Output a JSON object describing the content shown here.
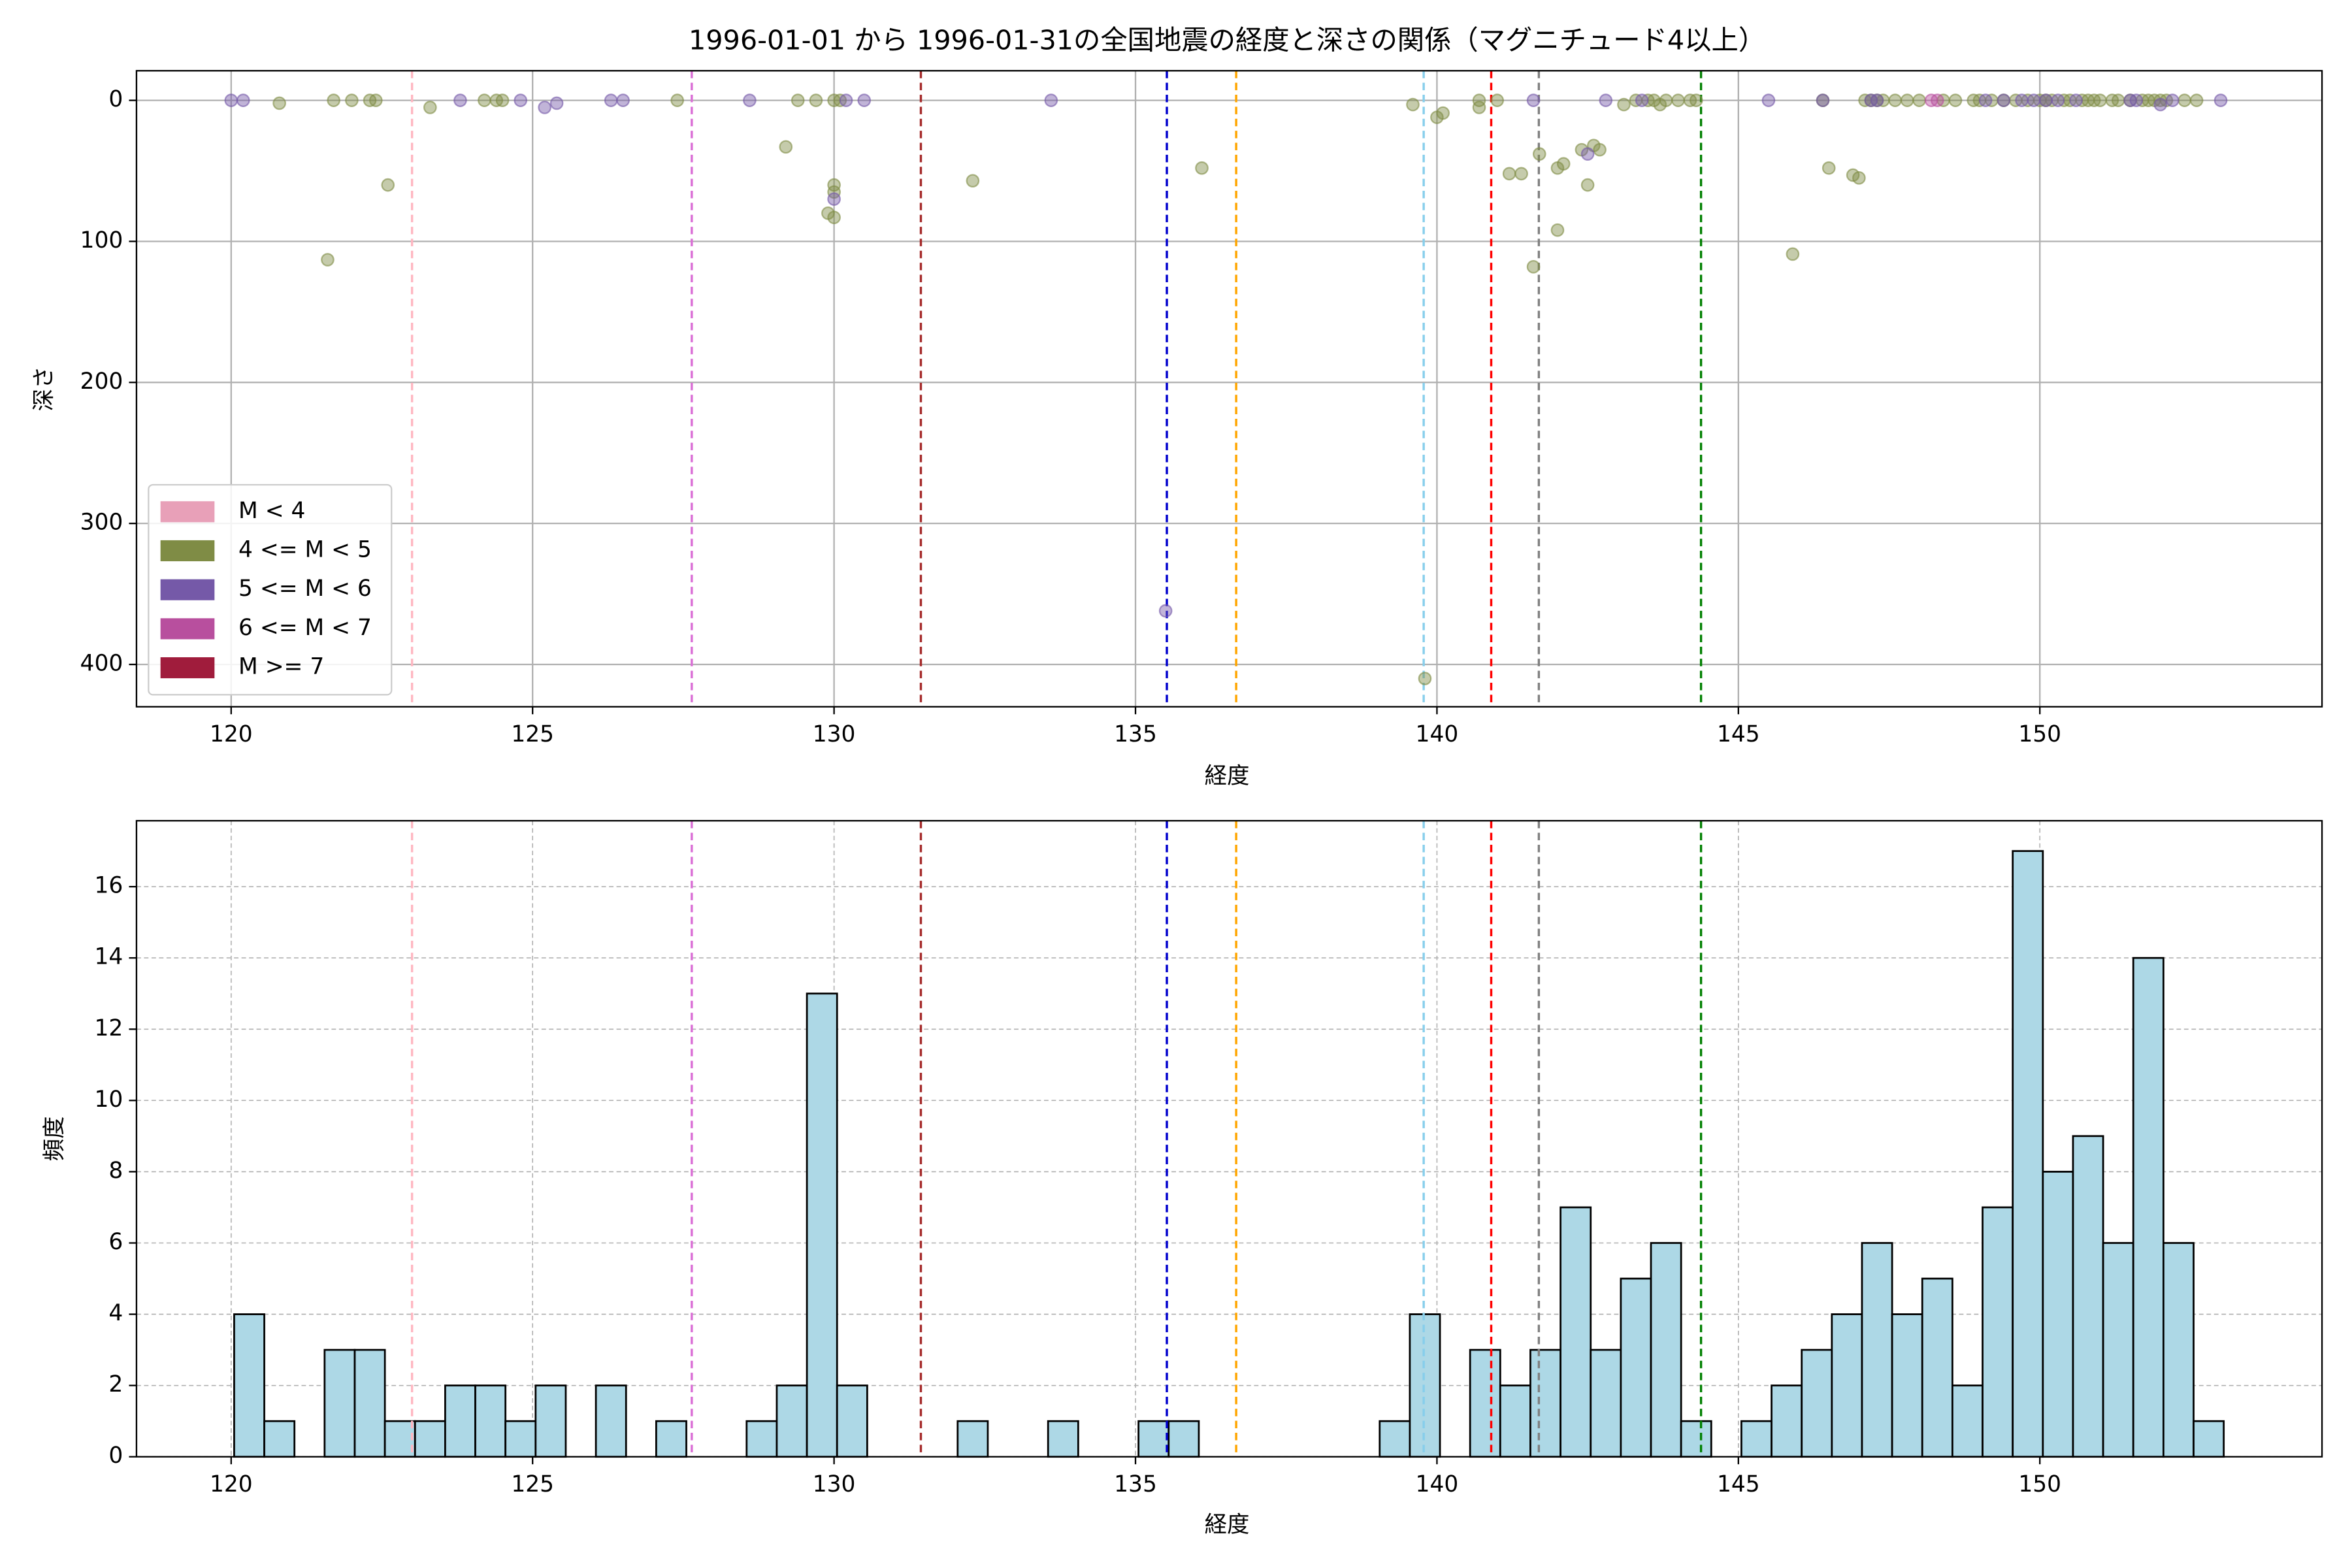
{
  "chart_data": [
    {
      "type": "scatter",
      "title": "1996-01-01 から 1996-01-31の全国地震の経度と深さの関係（マグニチュード4以上）",
      "xlabel": "経度",
      "ylabel": "深さ",
      "xlim": [
        118.43,
        154.68
      ],
      "ylim": [
        430,
        -21
      ],
      "xticks": [
        120,
        125,
        130,
        135,
        140,
        145,
        150
      ],
      "yticks": [
        0,
        100,
        200,
        300,
        400
      ],
      "grid": true,
      "grid_style": "solid",
      "legend": "lower left",
      "vlines": [
        {
          "x": 123.0,
          "color": "#ffb6c1"
        },
        {
          "x": 127.64,
          "color": "#da70d6"
        },
        {
          "x": 131.44,
          "color": "#a52a2a"
        },
        {
          "x": 135.52,
          "color": "#0000cd"
        },
        {
          "x": 136.67,
          "color": "#ffa500"
        },
        {
          "x": 139.78,
          "color": "#87ceeb"
        },
        {
          "x": 140.9,
          "color": "#ff0000"
        },
        {
          "x": 141.69,
          "color": "#808080"
        },
        {
          "x": 144.38,
          "color": "#008000"
        }
      ],
      "series": [
        {
          "name": "M < 4",
          "color": "#e8a0b8",
          "x": [],
          "y": []
        },
        {
          "name": "4 <= M < 5",
          "color": "#7f8c45",
          "x": [
            120.8,
            121.6,
            121.7,
            122.0,
            122.3,
            122.4,
            122.6,
            123.3,
            124.2,
            124.4,
            124.5,
            127.4,
            129.2,
            129.4,
            129.7,
            129.9,
            130.0,
            130.0,
            130.0,
            130.0,
            130.1,
            132.3,
            136.1,
            139.6,
            139.8,
            140.0,
            140.1,
            140.7,
            140.7,
            141.0,
            141.2,
            141.4,
            141.7,
            141.6,
            142.0,
            142.1,
            142.0,
            142.4,
            142.5,
            142.6,
            142.7,
            143.1,
            143.3,
            143.5,
            143.6,
            143.7,
            143.8,
            144.0,
            144.2,
            144.3,
            146.4,
            146.5,
            146.9,
            147.0,
            145.9,
            147.1,
            147.2,
            147.3,
            147.4,
            147.6,
            147.8,
            148.0,
            148.4,
            148.6,
            148.9,
            149.0,
            149.2,
            149.4,
            149.6,
            149.8,
            150.0,
            150.1,
            150.2,
            150.4,
            150.5,
            150.7,
            150.8,
            150.9,
            151.0,
            151.2,
            151.3,
            151.5,
            151.7,
            151.8,
            151.9,
            152.0,
            152.1,
            152.4,
            152.6
          ],
          "y": [
            2,
            113,
            0,
            0,
            0,
            0,
            60,
            5,
            0,
            0,
            0,
            0,
            33,
            0,
            0,
            80,
            83,
            60,
            65,
            0,
            0,
            57,
            48,
            3,
            410,
            12,
            9,
            0,
            5,
            0,
            52,
            52,
            38,
            118,
            48,
            45,
            92,
            35,
            60,
            32,
            35,
            3,
            0,
            0,
            0,
            3,
            0,
            0,
            0,
            0,
            0,
            48,
            53,
            55,
            109,
            0,
            0,
            0,
            0,
            0,
            0,
            0,
            0,
            0,
            0,
            0,
            0,
            0,
            0,
            0,
            0,
            0,
            0,
            0,
            0,
            0,
            0,
            0,
            0,
            0,
            0,
            0,
            0,
            0,
            0,
            0,
            0,
            0,
            0
          ]
        },
        {
          "name": "5 <= M < 6",
          "color": "#7559a8",
          "x": [
            120.0,
            120.2,
            123.8,
            124.8,
            125.2,
            125.4,
            126.3,
            126.5,
            128.6,
            130.0,
            130.2,
            130.5,
            133.6,
            135.5,
            141.6,
            142.5,
            142.8,
            143.4,
            145.5,
            146.4,
            147.2,
            147.3,
            149.1,
            149.4,
            149.7,
            149.9,
            150.1,
            150.3,
            150.6,
            151.5,
            151.6,
            152.0,
            152.2,
            153.0
          ],
          "y": [
            0,
            0,
            0,
            0,
            5,
            2,
            0,
            0,
            0,
            70,
            0,
            0,
            0,
            362,
            0,
            38,
            0,
            0,
            0,
            0,
            0,
            0,
            0,
            0,
            0,
            0,
            0,
            0,
            0,
            0,
            0,
            3,
            0,
            0
          ]
        },
        {
          "name": "6 <= M < 7",
          "color": "#b84f9e",
          "x": [
            148.2,
            148.3
          ],
          "y": [
            0,
            0
          ]
        },
        {
          "name": "M >= 7",
          "color": "#a01c3c",
          "x": [],
          "y": []
        }
      ]
    },
    {
      "type": "histogram",
      "xlabel": "経度",
      "ylabel": "頻度",
      "xlim": [
        118.43,
        154.68
      ],
      "ylim": [
        0,
        17.85
      ],
      "xticks": [
        120,
        125,
        130,
        135,
        140,
        145,
        150
      ],
      "yticks": [
        0,
        2,
        4,
        6,
        8,
        10,
        12,
        14,
        16
      ],
      "grid": true,
      "grid_style": "dashed",
      "color": "#add8e6",
      "edgecolor": "#000000",
      "vlines": [
        {
          "x": 123.0,
          "color": "#ffb6c1"
        },
        {
          "x": 127.64,
          "color": "#da70d6"
        },
        {
          "x": 131.44,
          "color": "#a52a2a"
        },
        {
          "x": 135.52,
          "color": "#0000cd"
        },
        {
          "x": 136.67,
          "color": "#ffa500"
        },
        {
          "x": 139.78,
          "color": "#87ceeb"
        },
        {
          "x": 140.9,
          "color": "#ff0000"
        },
        {
          "x": 141.69,
          "color": "#808080"
        },
        {
          "x": 144.38,
          "color": "#008000"
        }
      ],
      "bins": [
        120.05,
        120.55,
        121.05,
        121.55,
        122.05,
        122.55,
        123.05,
        123.55,
        124.05,
        124.55,
        125.05,
        125.55,
        126.05,
        126.55,
        127.05,
        127.55,
        128.05,
        128.55,
        129.05,
        129.55,
        130.05,
        130.55,
        131.05,
        131.55,
        132.05,
        132.55,
        133.05,
        133.55,
        134.05,
        134.55,
        135.05,
        135.55,
        136.05,
        136.55,
        137.05,
        137.55,
        138.05,
        138.55,
        139.05,
        139.55,
        140.05,
        140.55,
        141.05,
        141.55,
        142.05,
        142.55,
        143.05,
        143.55,
        144.05,
        144.55,
        145.05,
        145.55,
        146.05,
        146.55,
        147.05,
        147.55,
        148.05,
        148.55,
        149.05,
        149.55,
        150.05,
        150.55,
        151.05,
        151.55,
        152.05,
        152.55,
        153.05
      ],
      "counts": [
        4,
        1,
        0,
        3,
        3,
        1,
        1,
        2,
        2,
        1,
        2,
        0,
        2,
        0,
        1,
        0,
        0,
        1,
        2,
        13,
        2,
        0,
        0,
        0,
        1,
        0,
        0,
        1,
        0,
        0,
        1,
        1,
        0,
        0,
        0,
        0,
        0,
        0,
        1,
        4,
        0,
        3,
        2,
        3,
        7,
        3,
        5,
        6,
        1,
        0,
        1,
        2,
        3,
        4,
        6,
        4,
        5,
        2,
        7,
        17,
        8,
        9,
        6,
        14,
        6,
        1
      ]
    }
  ]
}
